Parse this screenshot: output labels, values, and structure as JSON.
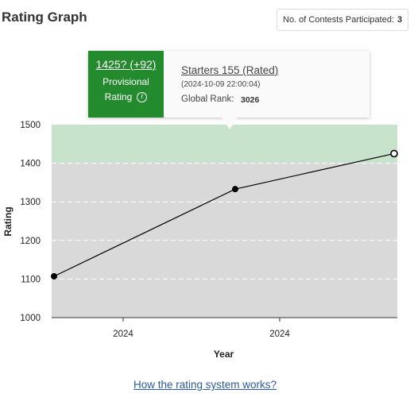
{
  "header": {
    "title": "Rating Graph",
    "contests_label": "No. of Contests Participated:",
    "contests_count": "3"
  },
  "tooltip": {
    "rating": "1425? (+92)",
    "status": "Provisional",
    "kind": "Rating",
    "contest": "Starters 155 (Rated)",
    "date": "(2024-10-09 22:00:04)",
    "rank_label": "Global Rank:",
    "rank_value": "3026",
    "color": "#248a2e"
  },
  "footer": {
    "link": "How the rating system works?"
  },
  "chart_data": {
    "type": "line",
    "xlabel": "Year",
    "ylabel": "Rating",
    "ylim": [
      1000,
      1500
    ],
    "yticks": [
      "1000",
      "1100",
      "1200",
      "1300",
      "1400",
      "1500"
    ],
    "xticks": [
      "2024",
      "2024"
    ],
    "bands": [
      {
        "from": 1000,
        "to": 1400,
        "color": "#d9d9d9"
      },
      {
        "from": 1400,
        "to": 1500,
        "color": "#c8e3cb"
      }
    ],
    "series": [
      {
        "values": [
          1107,
          1333,
          1425
        ]
      }
    ]
  }
}
